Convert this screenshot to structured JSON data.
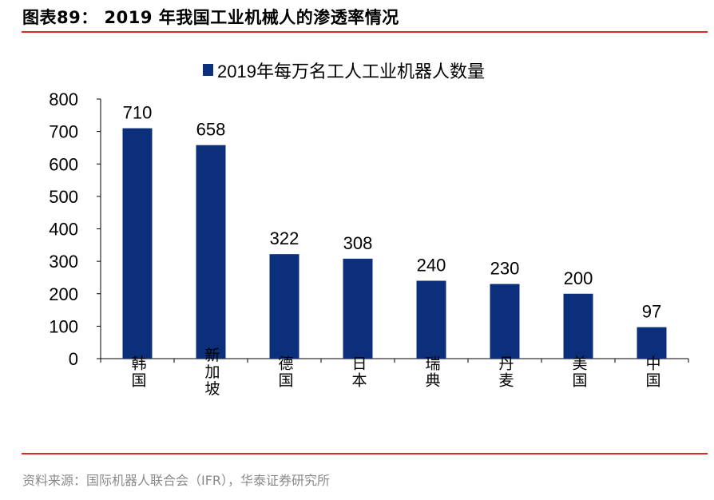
{
  "header": {
    "title": "图表89：  2019 年我国工业机械人的渗透率情况"
  },
  "footer": {
    "source": "资料来源：国际机器人联合会（IFR），华泰证券研究所"
  },
  "colors": {
    "bar": "#0b2f7a",
    "rule": "#e02a1c"
  },
  "chart_data": {
    "type": "bar",
    "title": "",
    "categories": [
      "韩国",
      "新加坡",
      "德国",
      "日本",
      "瑞典",
      "丹麦",
      "美国",
      "中国"
    ],
    "series": [
      {
        "name": "2019年每万名工人工业机器人数量",
        "values": [
          710,
          658,
          322,
          308,
          240,
          230,
          200,
          97
        ]
      }
    ],
    "ylim": [
      0,
      800
    ],
    "yticks": [
      0,
      100,
      200,
      300,
      400,
      500,
      600,
      700,
      800
    ],
    "grid": false,
    "legend": "top-center",
    "data_labels": true
  }
}
